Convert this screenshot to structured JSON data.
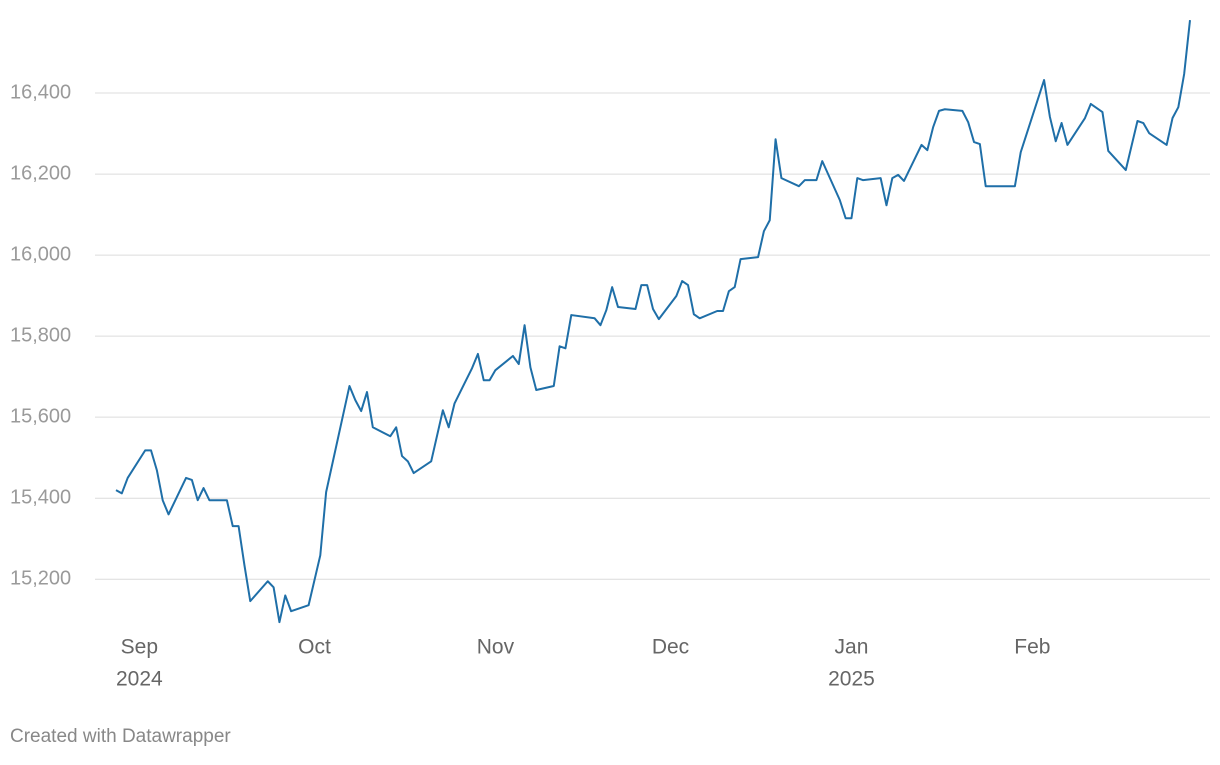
{
  "chart_data": {
    "type": "line",
    "footer": "Created with Datawrapper",
    "x": [
      "2024-08-28",
      "2024-08-29",
      "2024-08-30",
      "2024-09-02",
      "2024-09-03",
      "2024-09-04",
      "2024-09-05",
      "2024-09-06",
      "2024-09-09",
      "2024-09-10",
      "2024-09-11",
      "2024-09-12",
      "2024-09-13",
      "2024-09-16",
      "2024-09-17",
      "2024-09-18",
      "2024-09-19",
      "2024-09-20",
      "2024-09-23",
      "2024-09-24",
      "2024-09-25",
      "2024-09-26",
      "2024-09-27",
      "2024-09-30",
      "2024-10-02",
      "2024-10-03",
      "2024-10-07",
      "2024-10-08",
      "2024-10-09",
      "2024-10-10",
      "2024-10-11",
      "2024-10-14",
      "2024-10-15",
      "2024-10-16",
      "2024-10-17",
      "2024-10-18",
      "2024-10-21",
      "2024-10-23",
      "2024-10-24",
      "2024-10-25",
      "2024-10-28",
      "2024-10-29",
      "2024-10-30",
      "2024-10-31",
      "2024-11-01",
      "2024-11-04",
      "2024-11-05",
      "2024-11-06",
      "2024-11-07",
      "2024-11-08",
      "2024-11-11",
      "2024-11-12",
      "2024-11-13",
      "2024-11-14",
      "2024-11-18",
      "2024-11-19",
      "2024-11-20",
      "2024-11-21",
      "2024-11-22",
      "2024-11-25",
      "2024-11-26",
      "2024-11-27",
      "2024-11-28",
      "2024-11-29",
      "2024-12-02",
      "2024-12-03",
      "2024-12-04",
      "2024-12-05",
      "2024-12-06",
      "2024-12-09",
      "2024-12-10",
      "2024-12-11",
      "2024-12-12",
      "2024-12-13",
      "2024-12-16",
      "2024-12-17",
      "2024-12-18",
      "2024-12-19",
      "2024-12-20",
      "2024-12-23",
      "2024-12-24",
      "2024-12-26",
      "2024-12-27",
      "2024-12-30",
      "2024-12-31",
      "2025-01-01",
      "2025-01-02",
      "2025-01-03",
      "2025-01-06",
      "2025-01-07",
      "2025-01-08",
      "2025-01-09",
      "2025-01-10",
      "2025-01-13",
      "2025-01-14",
      "2025-01-15",
      "2025-01-16",
      "2025-01-17",
      "2025-01-20",
      "2025-01-21",
      "2025-01-22",
      "2025-01-23",
      "2025-01-24",
      "2025-01-29",
      "2025-01-30",
      "2025-02-03",
      "2025-02-04",
      "2025-02-05",
      "2025-02-06",
      "2025-02-07",
      "2025-02-10",
      "2025-02-11",
      "2025-02-13",
      "2025-02-14",
      "2025-02-17",
      "2025-02-19",
      "2025-02-20",
      "2025-02-21",
      "2025-02-24",
      "2025-02-25",
      "2025-02-26",
      "2025-02-27",
      "2025-02-28"
    ],
    "series": [
      {
        "color": "#1f6fa8",
        "values": [
          15420,
          15412,
          15450,
          15518,
          15518,
          15469,
          15395,
          15360,
          15450,
          15445,
          15395,
          15425,
          15395,
          15395,
          15331,
          15331,
          15235,
          15146,
          15195,
          15180,
          15094,
          15160,
          15121,
          15136,
          15259,
          15415,
          15677,
          15642,
          15615,
          15662,
          15575,
          15553,
          15575,
          15504,
          15491,
          15462,
          15491,
          15617,
          15575,
          15634,
          15721,
          15756,
          15691,
          15691,
          15716,
          15751,
          15731,
          15827,
          15723,
          15667,
          15677,
          15775,
          15770,
          15852,
          15844,
          15827,
          15864,
          15921,
          15872,
          15867,
          15926,
          15926,
          15867,
          15842,
          15899,
          15936,
          15926,
          15854,
          15844,
          15862,
          15862,
          15911,
          15921,
          15990,
          15995,
          16059,
          16086,
          16286,
          16190,
          16170,
          16185,
          16185,
          16232,
          16136,
          16091,
          16091,
          16190,
          16185,
          16190,
          16123,
          16190,
          16198,
          16183,
          16272,
          16259,
          16316,
          16356,
          16360,
          16356,
          16328,
          16279,
          16274,
          16170,
          16170,
          16254,
          16432,
          16341,
          16281,
          16326,
          16272,
          16338,
          16373,
          16353,
          16257,
          16210,
          16331,
          16326,
          16301,
          16272,
          16338,
          16365,
          16447,
          16580
        ]
      }
    ],
    "xlim": [
      "2024-08-28",
      "2025-02-28"
    ],
    "xticks": [
      {
        "value": "2024-09-01",
        "label": "Sep",
        "year": "2024"
      },
      {
        "value": "2024-10-01",
        "label": "Oct"
      },
      {
        "value": "2024-11-01",
        "label": "Nov"
      },
      {
        "value": "2024-12-01",
        "label": "Dec"
      },
      {
        "value": "2025-01-01",
        "label": "Jan",
        "year": "2025"
      },
      {
        "value": "2025-02-01",
        "label": "Feb"
      }
    ],
    "ylim": [
      15050,
      16600
    ],
    "yticks": [
      {
        "value": 15200,
        "label": "15,200"
      },
      {
        "value": 15400,
        "label": "15,400"
      },
      {
        "value": 15600,
        "label": "15,600"
      },
      {
        "value": 15800,
        "label": "15,800"
      },
      {
        "value": 16000,
        "label": "16,000"
      },
      {
        "value": 16200,
        "label": "16,200"
      },
      {
        "value": 16400,
        "label": "16,400"
      }
    ],
    "grid": true
  }
}
